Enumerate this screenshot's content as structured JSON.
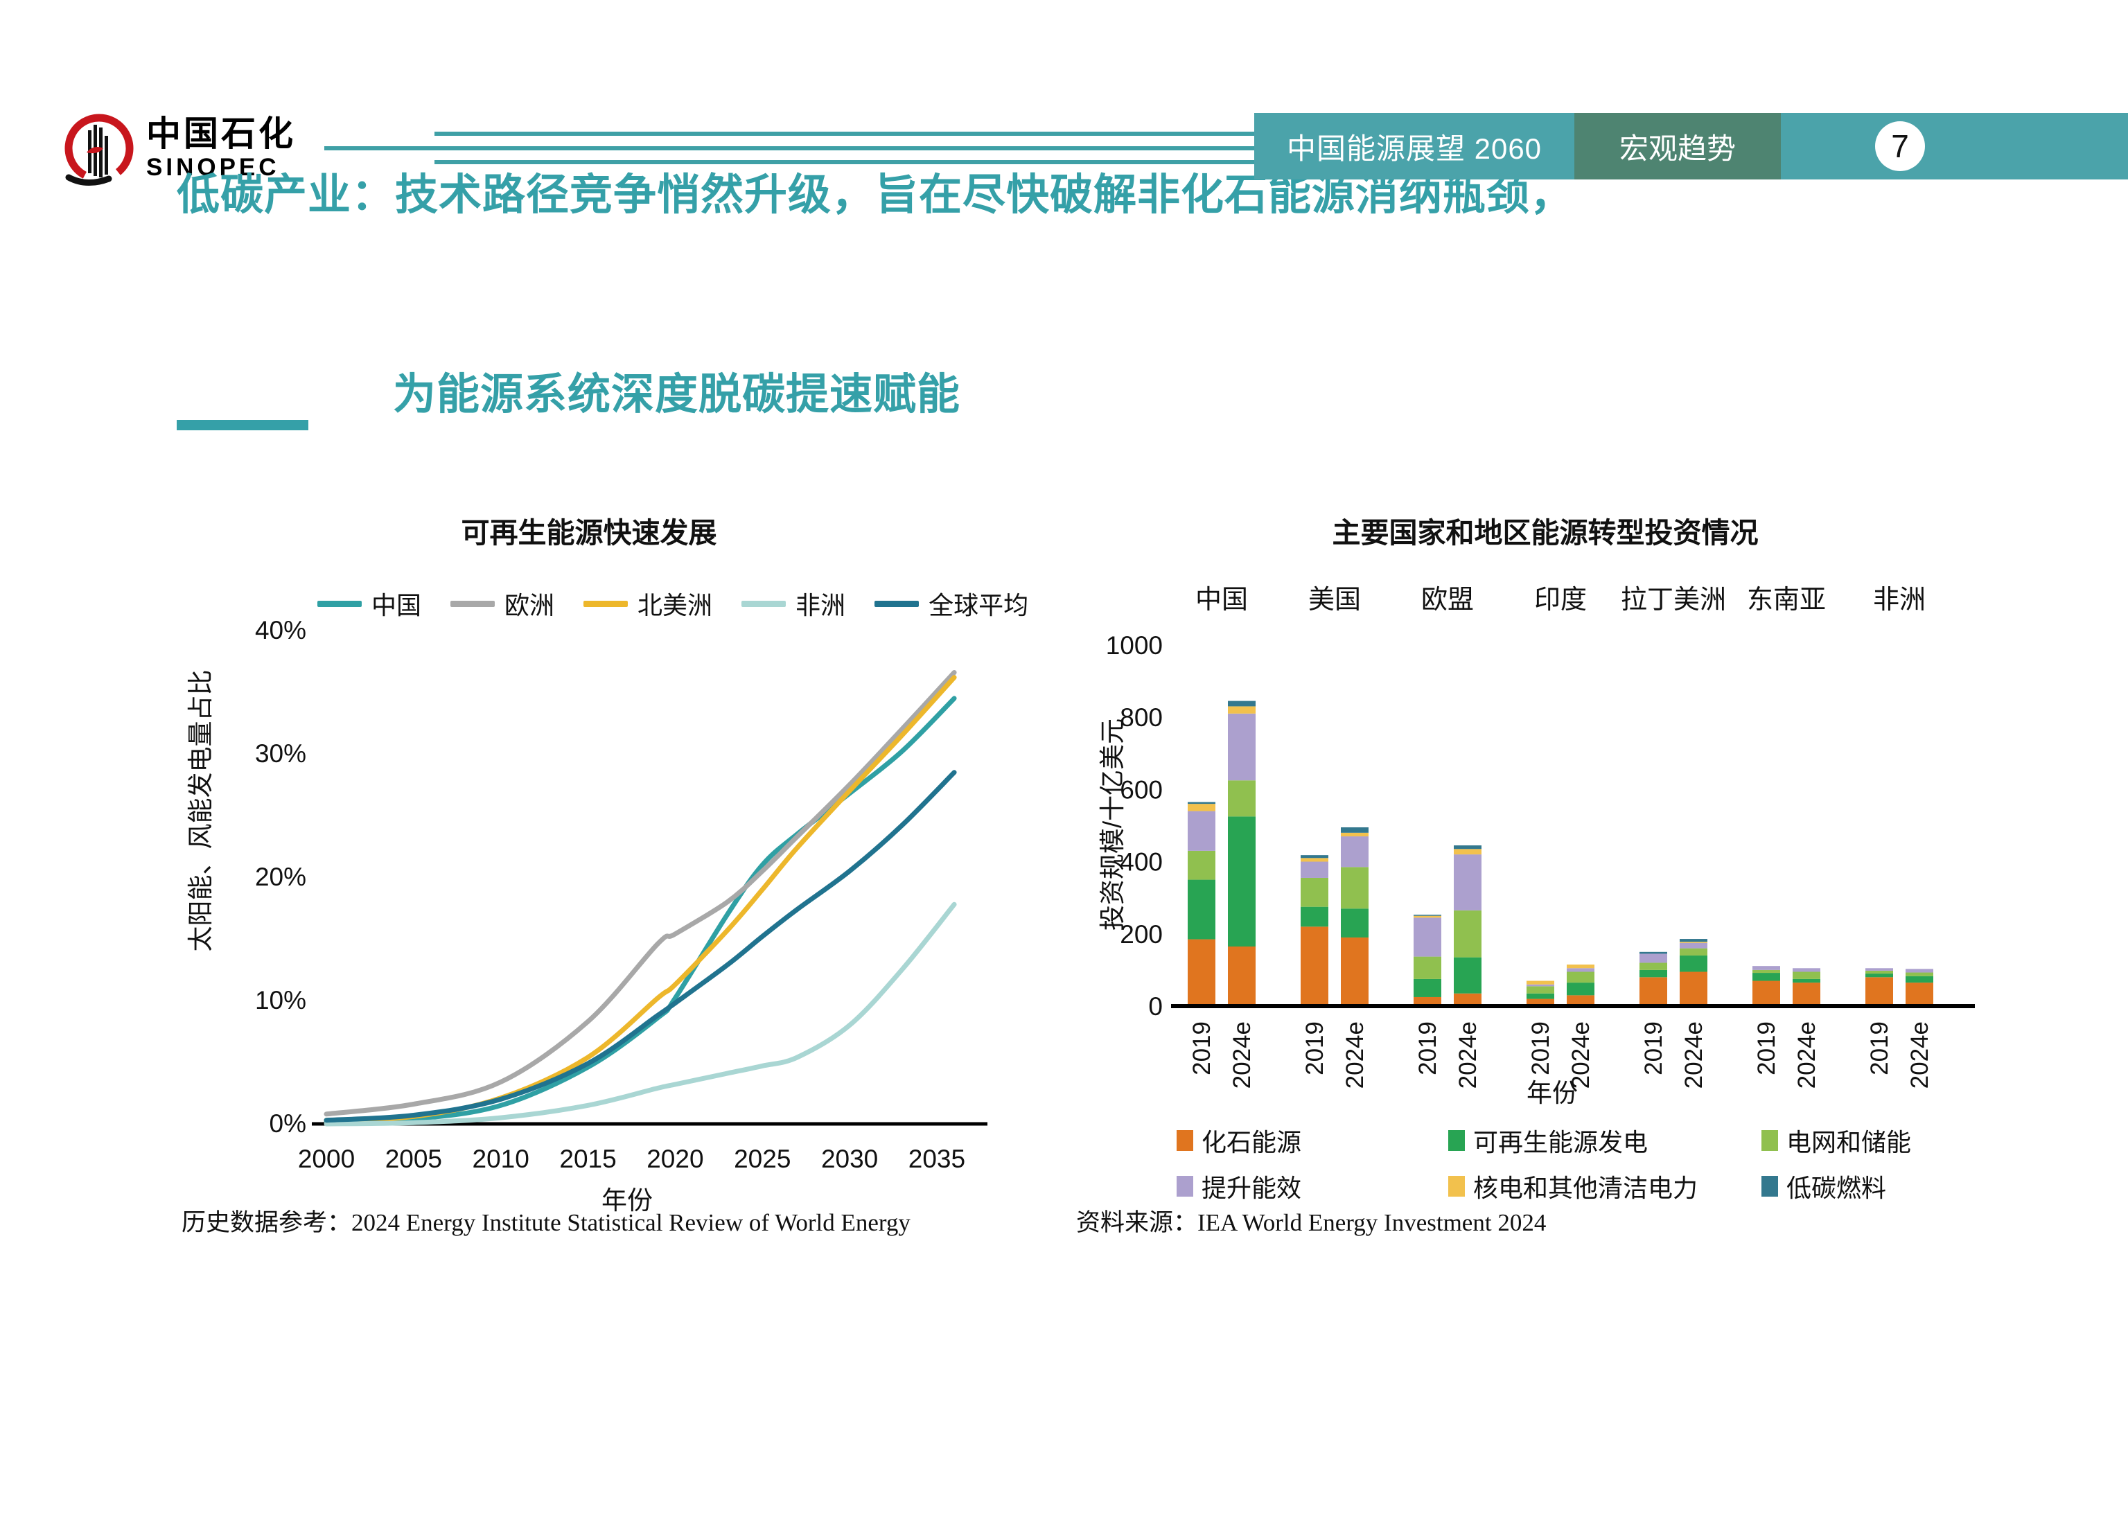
{
  "header": {
    "logo_cn": "中国石化",
    "logo_en": "SINOPEC",
    "doc_title": "中国能源展望 2060",
    "section": "宏观趋势",
    "page_number": "7",
    "bar_color": "#4BA3AA",
    "section_bg": "#4E8471",
    "accent_line_color": "#3FA0A6"
  },
  "title": {
    "line1": "低碳产业：技术路径竞争悄然升级，旨在尽快破解非化石能源消纳瓶颈，",
    "line2": "为能源系统深度脱碳提速赋能",
    "color": "#35A0A8"
  },
  "footnotes": {
    "left": "历史数据参考：2024 Energy Institute Statistical Review of World Energy",
    "right": "资料来源：IEA World Energy Investment 2024"
  },
  "chart_data": [
    {
      "type": "line",
      "title": "可再生能源快速发展",
      "xlabel": "年份",
      "ylabel": "太阳能、风能发电量占比",
      "x_ticks": [
        "2000",
        "2005",
        "2010",
        "2015",
        "2020",
        "2025",
        "2030",
        "2035"
      ],
      "y_ticks": [
        "0%",
        "10%",
        "20%",
        "30%",
        "40%"
      ],
      "xlim": [
        2000,
        2036.5
      ],
      "ylim": [
        0,
        40
      ],
      "grid": false,
      "legend_position": "top",
      "x": [
        2000,
        2005,
        2010,
        2015,
        2019,
        2020,
        2023,
        2025,
        2027,
        2030,
        2033,
        2036
      ],
      "series": [
        {
          "name": "中国",
          "color": "#2FA0A4",
          "values": [
            0.2,
            0.4,
            1.5,
            4.6,
            8.6,
            10.2,
            17.0,
            21.0,
            23.5,
            26.8,
            30.2,
            34.5
          ]
        },
        {
          "name": "欧洲",
          "color": "#A8A8A8",
          "values": [
            0.8,
            1.6,
            3.4,
            8.3,
            14.6,
            15.4,
            18.0,
            20.5,
            23.3,
            27.5,
            32.0,
            36.6
          ]
        },
        {
          "name": "北美洲",
          "color": "#EDB72B",
          "values": [
            0.3,
            0.6,
            2.1,
            5.4,
            10.2,
            11.3,
            15.7,
            19.0,
            22.4,
            27.0,
            31.5,
            36.2
          ]
        },
        {
          "name": "非洲",
          "color": "#A9D6D3",
          "values": [
            0.0,
            0.1,
            0.5,
            1.5,
            2.9,
            3.2,
            4.1,
            4.7,
            5.4,
            8.0,
            12.5,
            17.8
          ]
        },
        {
          "name": "全球平均",
          "color": "#20738F",
          "values": [
            0.3,
            0.7,
            2.0,
            4.9,
            8.8,
            9.8,
            12.9,
            15.2,
            17.4,
            20.5,
            24.2,
            28.5
          ]
        }
      ]
    },
    {
      "type": "bar",
      "subtype": "stacked",
      "title": "主要国家和地区能源转型投资情况",
      "xlabel": "年份",
      "ylabel": "投资规模/十亿美元",
      "y_ticks": [
        0,
        200,
        400,
        600,
        800,
        1000
      ],
      "ylim": [
        0,
        1000
      ],
      "grid": false,
      "legend_position": "bottom",
      "stack_categories": [
        "化石能源",
        "可再生能源发电",
        "电网和储能",
        "提升能效",
        "核电和其他清洁电力",
        "低碳燃料"
      ],
      "stack_colors": [
        "#E0751F",
        "#28A453",
        "#90C04F",
        "#ACA0CE",
        "#F2C14D",
        "#33788E"
      ],
      "unit": "十亿美元",
      "groups": [
        {
          "region": "中国",
          "bars": [
            {
              "year": "2019",
              "values": [
                185,
                165,
                80,
                110,
                20,
                5
              ]
            },
            {
              "year": "2024e",
              "values": [
                165,
                360,
                100,
                185,
                20,
                15
              ]
            }
          ]
        },
        {
          "region": "美国",
          "bars": [
            {
              "year": "2019",
              "values": [
                220,
                55,
                80,
                45,
                10,
                8
              ]
            },
            {
              "year": "2024e",
              "values": [
                190,
                80,
                115,
                85,
                10,
                15
              ]
            }
          ]
        },
        {
          "region": "欧盟",
          "bars": [
            {
              "year": "2019",
              "values": [
                25,
                50,
                62,
                108,
                5,
                3
              ]
            },
            {
              "year": "2024e",
              "values": [
                35,
                100,
                130,
                155,
                15,
                10
              ]
            }
          ]
        },
        {
          "region": "印度",
          "bars": [
            {
              "year": "2019",
              "values": [
                20,
                15,
                20,
                5,
                10,
                0
              ]
            },
            {
              "year": "2024e",
              "values": [
                30,
                35,
                30,
                10,
                10,
                0
              ]
            }
          ]
        },
        {
          "region": "拉丁美洲",
          "bars": [
            {
              "year": "2019",
              "values": [
                80,
                20,
                20,
                25,
                0,
                5
              ]
            },
            {
              "year": "2024e",
              "values": [
                95,
                45,
                20,
                15,
                3,
                8
              ]
            }
          ]
        },
        {
          "region": "东南亚",
          "bars": [
            {
              "year": "2019",
              "values": [
                70,
                22,
                8,
                11,
                0,
                0
              ]
            },
            {
              "year": "2024e",
              "values": [
                65,
                10,
                20,
                10,
                0,
                0
              ]
            }
          ]
        },
        {
          "region": "非洲",
          "bars": [
            {
              "year": "2019",
              "values": [
                80,
                10,
                8,
                7,
                0,
                0
              ]
            },
            {
              "year": "2024e",
              "values": [
                65,
                18,
                10,
                10,
                0,
                0
              ]
            }
          ]
        }
      ]
    }
  ]
}
